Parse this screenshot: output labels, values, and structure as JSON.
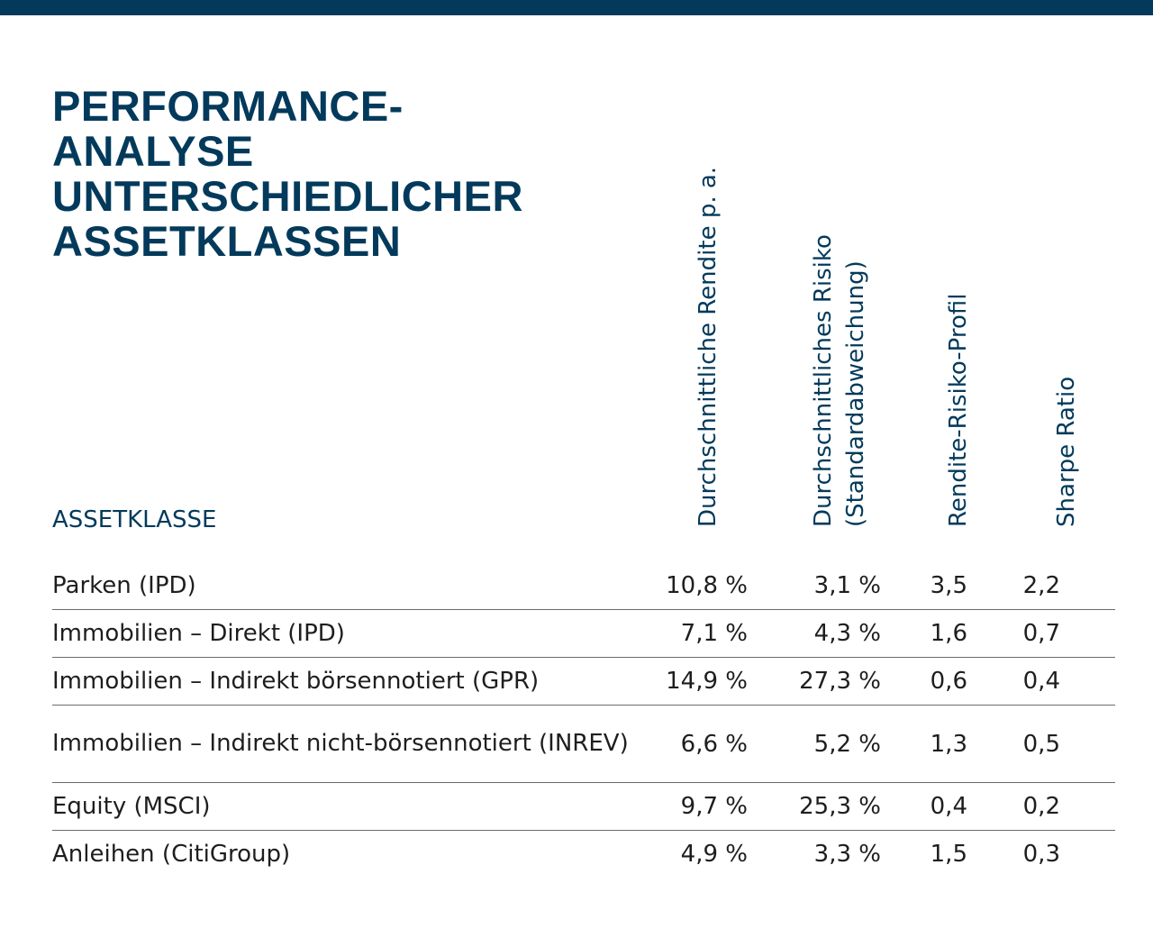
{
  "title_lines": [
    "PERFORMANCE-",
    "ANALYSE",
    "UNTERSCHIEDLICHER",
    "ASSETKLASSEN"
  ],
  "chart_data": {
    "type": "table",
    "title": "PERFORMANCE-ANALYSE UNTERSCHIEDLICHER ASSETKLASSEN",
    "row_header": "ASSETKLASSE",
    "columns": [
      {
        "line1": "Durchschnittliche Rendite p. a.",
        "line2": ""
      },
      {
        "line1": "Durchschnittliches Risiko",
        "line2": "(Standardabweichung)"
      },
      {
        "line1": "Rendite-Risiko-Profil",
        "line2": ""
      },
      {
        "line1": "Sharpe Ratio",
        "line2": ""
      }
    ],
    "rows": [
      {
        "label": "Parken (IPD)",
        "values": [
          "10,8 %",
          "3,1 %",
          "3,5",
          "2,2"
        ]
      },
      {
        "label": "Immobilien – Direkt (IPD)",
        "values": [
          "7,1 %",
          "4,3 %",
          "1,6",
          "0,7"
        ]
      },
      {
        "label": "Immobilien – Indirekt börsennotiert (GPR)",
        "values": [
          "14,9 %",
          "27,3 %",
          "0,6",
          "0,4"
        ]
      },
      {
        "label": "Immobilien – Indirekt nicht-börsennotiert (INREV)",
        "values": [
          "6,6 %",
          "5,2 %",
          "1,3",
          "0,5"
        ]
      },
      {
        "label": "Equity (MSCI)",
        "values": [
          "9,7 %",
          "25,3 %",
          "0,4",
          "0,2"
        ]
      },
      {
        "label": "Anleihen (CitiGroup)",
        "values": [
          "4,9 %",
          "3,3 %",
          "1,5",
          "0,3"
        ]
      }
    ]
  },
  "colors": {
    "accent": "#033a5b",
    "text": "#1e1e1e",
    "rule": "#6b6b6b"
  }
}
